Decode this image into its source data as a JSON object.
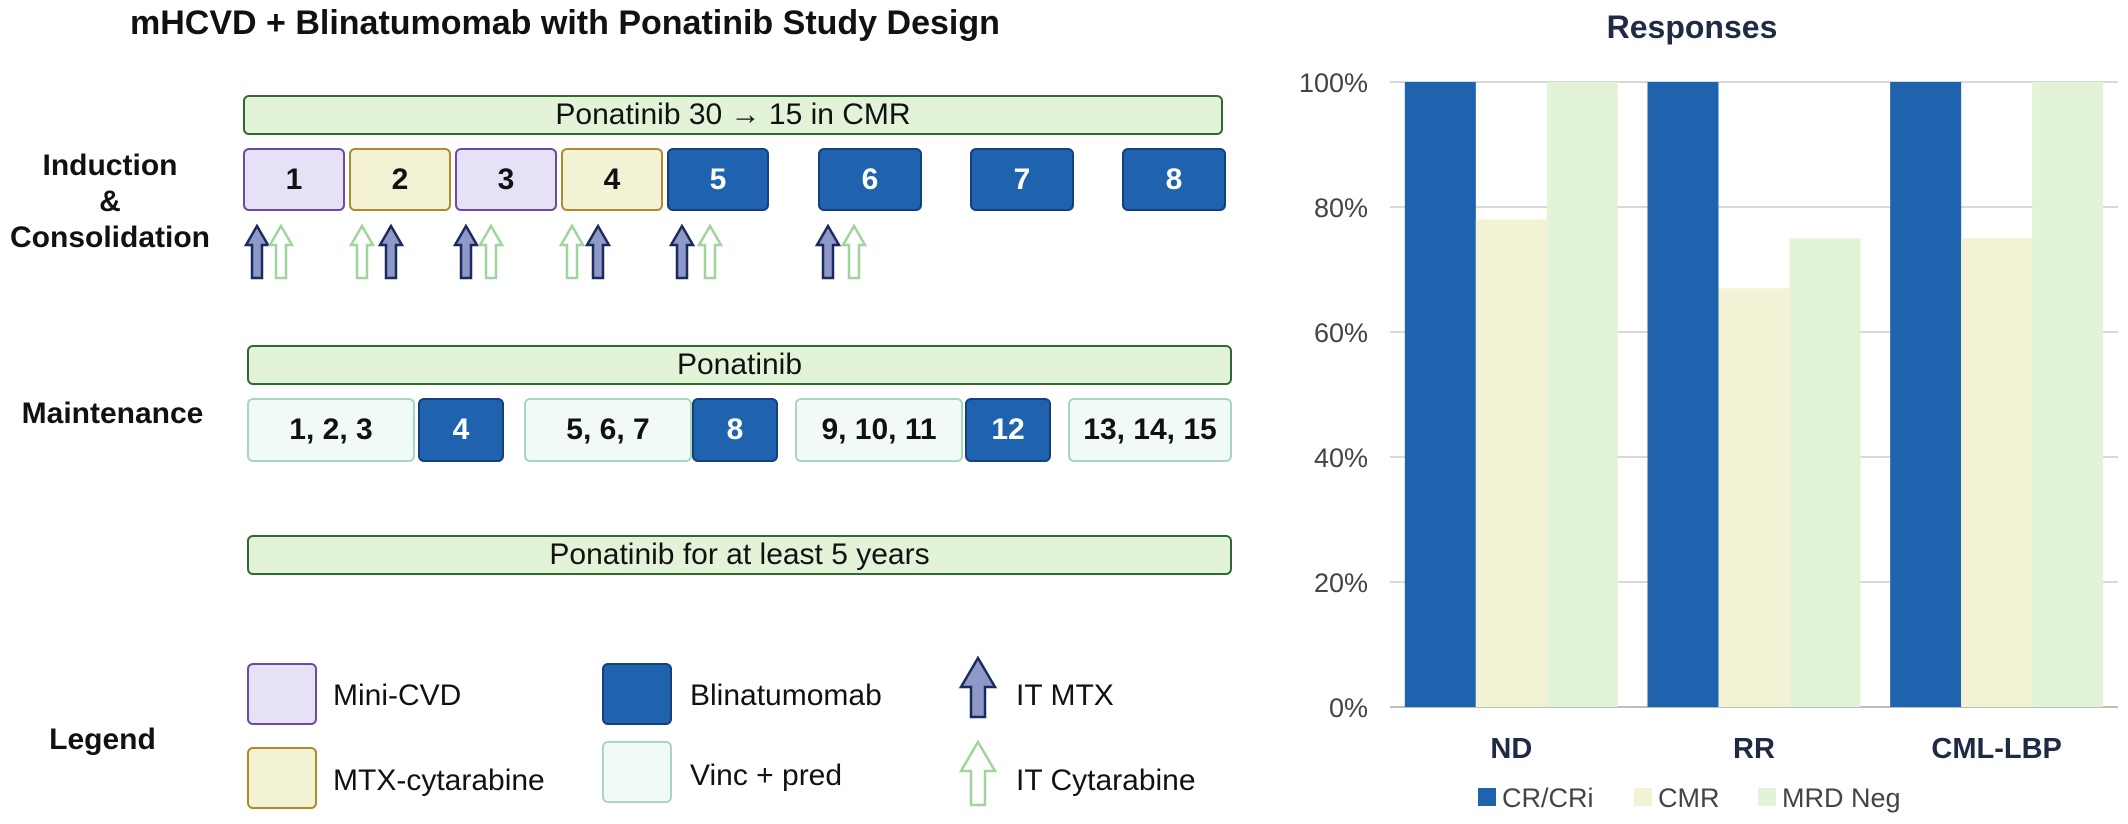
{
  "title": "mHCVD + Blinatumomab with Ponatinib Study Design",
  "colors": {
    "mini_cvd": "#e6e1f7",
    "mtx_cytarabine": "#f4f2d4",
    "blinatumomab": "#1f63ae",
    "vinc_pred": "#f1faf6",
    "ponatinib_bar": "#e2f3d8",
    "it_mtx_arrow": "#8f99c8",
    "it_cytarabine_arrow": "#9fd49a"
  },
  "induction": {
    "label_line1": "Induction",
    "label_line2": "&",
    "label_line3": "Consolidation",
    "ponatinib_bar": "Ponatinib 30 → 15 in CMR",
    "cycles": [
      {
        "label": "1",
        "type": "mini_cvd"
      },
      {
        "label": "2",
        "type": "mtx_cytarabine"
      },
      {
        "label": "3",
        "type": "mini_cvd"
      },
      {
        "label": "4",
        "type": "mtx_cytarabine"
      },
      {
        "label": "5",
        "type": "blinatumomab"
      },
      {
        "label": "6",
        "type": "blinatumomab"
      },
      {
        "label": "7",
        "type": "blinatumomab"
      },
      {
        "label": "8",
        "type": "blinatumomab"
      }
    ],
    "arrows": [
      {
        "cycle": 1,
        "order": [
          "it-mtx",
          "it-cytarabine"
        ]
      },
      {
        "cycle": 2,
        "order": [
          "it-cytarabine",
          "it-mtx"
        ]
      },
      {
        "cycle": 3,
        "order": [
          "it-mtx",
          "it-cytarabine"
        ]
      },
      {
        "cycle": 4,
        "order": [
          "it-cytarabine",
          "it-mtx"
        ]
      },
      {
        "cycle": 5,
        "order": [
          "it-mtx",
          "it-cytarabine"
        ]
      },
      {
        "cycle": 6,
        "order": [
          "it-mtx",
          "it-cytarabine"
        ]
      }
    ]
  },
  "maintenance": {
    "label": "Maintenance",
    "ponatinib_bar": "Ponatinib",
    "blocks": [
      {
        "label": "1, 2, 3",
        "type": "vinc_pred"
      },
      {
        "label": "4",
        "type": "blinatumomab"
      },
      {
        "label": "5, 6, 7",
        "type": "vinc_pred"
      },
      {
        "label": "8",
        "type": "blinatumomab"
      },
      {
        "label": "9, 10, 11",
        "type": "vinc_pred"
      },
      {
        "label": "12",
        "type": "blinatumomab"
      },
      {
        "label": "13, 14, 15",
        "type": "vinc_pred"
      }
    ],
    "long_term_bar": "Ponatinib for at least 5 years"
  },
  "legend": {
    "label": "Legend",
    "items": [
      {
        "label": "Mini-CVD",
        "kind": "mini_cvd"
      },
      {
        "label": "MTX-cytarabine",
        "kind": "mtx_cytarabine"
      },
      {
        "label": "Blinatumomab",
        "kind": "blinatumomab"
      },
      {
        "label": "Vinc + pred",
        "kind": "vinc_pred"
      },
      {
        "label": "IT MTX",
        "kind": "it_mtx_arrow"
      },
      {
        "label": "IT Cytarabine",
        "kind": "it_cytarabine_arrow"
      }
    ]
  },
  "chart_data": {
    "type": "bar",
    "title": "Responses",
    "categories": [
      "ND",
      "RR",
      "CML-LBP"
    ],
    "series": [
      {
        "name": "CR/CRi",
        "color": "#1f63ae",
        "values": [
          100,
          100,
          100
        ]
      },
      {
        "name": "CMR",
        "color": "#f4f2d4",
        "values": [
          78,
          67,
          75
        ]
      },
      {
        "name": "MRD Neg",
        "color": "#e2f3d8",
        "values": [
          100,
          75,
          100
        ]
      }
    ],
    "ylim": [
      0,
      100
    ],
    "yticks": [
      "0%",
      "20%",
      "40%",
      "60%",
      "80%",
      "100%"
    ],
    "ytick_values": [
      0,
      20,
      40,
      60,
      80,
      100
    ],
    "grid": true,
    "legend_position": "bottom"
  }
}
